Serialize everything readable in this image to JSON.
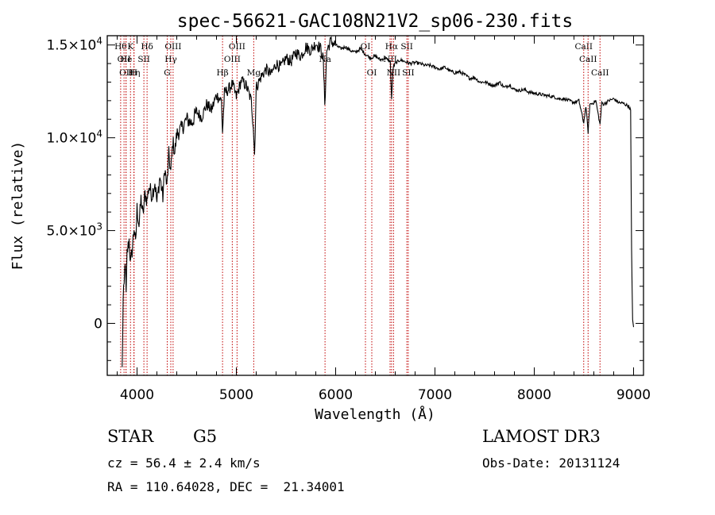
{
  "chart_data": {
    "type": "line",
    "title": "spec-56621-GAC108N21V2_sp06-230.fits",
    "xlabel": "Wavelength (Å)",
    "ylabel": "Flux (relative)",
    "xlim": [
      3700,
      9100
    ],
    "ylim": [
      -2800,
      15500
    ],
    "x_ticks": [
      4000,
      5000,
      6000,
      7000,
      8000,
      9000
    ],
    "x_tick_labels": [
      "4000",
      "5000",
      "6000",
      "7000",
      "8000",
      "9000"
    ],
    "y_ticks": [
      0,
      5000,
      10000,
      15000
    ],
    "y_tick_labels": [
      {
        "mantissa": "0",
        "exponent": ""
      },
      {
        "mantissa": "5.0×10",
        "exponent": "3"
      },
      {
        "mantissa": "1.0×10",
        "exponent": "4"
      },
      {
        "mantissa": "1.5×10",
        "exponent": "4"
      }
    ],
    "series": [
      {
        "name": "spectrum",
        "x": [
          3850,
          3860,
          3870,
          3880,
          3890,
          3900,
          3920,
          3935,
          3950,
          3970,
          3985,
          4000,
          4020,
          4040,
          4060,
          4080,
          4100,
          4120,
          4150,
          4180,
          4200,
          4230,
          4260,
          4280,
          4300,
          4320,
          4340,
          4360,
          4380,
          4400,
          4450,
          4500,
          4550,
          4600,
          4650,
          4700,
          4750,
          4800,
          4850,
          4861,
          4880,
          4920,
          4960,
          5000,
          5050,
          5100,
          5150,
          5170,
          5183,
          5200,
          5250,
          5300,
          5350,
          5400,
          5450,
          5500,
          5550,
          5600,
          5650,
          5700,
          5750,
          5800,
          5850,
          5875,
          5890,
          5896,
          5910,
          5950,
          6000,
          6050,
          6100,
          6150,
          6200,
          6250,
          6300,
          6350,
          6400,
          6450,
          6500,
          6550,
          6563,
          6580,
          6600,
          6650,
          6700,
          6750,
          6800,
          6850,
          6900,
          6950,
          7000,
          7050,
          7100,
          7150,
          7200,
          7250,
          7300,
          7350,
          7400,
          7450,
          7500,
          7550,
          7600,
          7650,
          7700,
          7750,
          7800,
          7850,
          7900,
          7950,
          8000,
          8050,
          8100,
          8150,
          8200,
          8250,
          8300,
          8350,
          8400,
          8450,
          8498,
          8520,
          8542,
          8560,
          8600,
          8620,
          8662,
          8680,
          8700,
          8750,
          8800,
          8850,
          8900,
          8950,
          8970,
          8980,
          8990,
          9000
        ],
        "y": [
          -2500,
          1200,
          2000,
          3500,
          1500,
          3800,
          4500,
          3200,
          3900,
          5200,
          4200,
          6200,
          5300,
          6700,
          5800,
          7000,
          6600,
          7400,
          6900,
          7600,
          6500,
          7900,
          6800,
          8400,
          7300,
          9100,
          8100,
          9800,
          9200,
          10200,
          10500,
          11000,
          10800,
          11400,
          11100,
          11800,
          11500,
          12300,
          12000,
          10300,
          12400,
          12600,
          12900,
          12200,
          13100,
          12800,
          12000,
          10700,
          9100,
          12700,
          13300,
          13700,
          13400,
          14000,
          13800,
          14300,
          14100,
          14600,
          14400,
          14900,
          14700,
          15100,
          14800,
          14200,
          11900,
          12500,
          14700,
          15200,
          15000,
          14800,
          14900,
          14700,
          14600,
          14800,
          14500,
          14300,
          14400,
          14200,
          14300,
          14100,
          12100,
          13800,
          14000,
          14200,
          14100,
          14000,
          14050,
          14000,
          13900,
          13900,
          13800,
          13700,
          13800,
          13600,
          13500,
          13550,
          13400,
          13200,
          13250,
          13000,
          13000,
          12900,
          12800,
          13000,
          12700,
          12850,
          12600,
          12550,
          12600,
          12450,
          12400,
          12350,
          12300,
          12250,
          12200,
          12100,
          12100,
          12000,
          11900,
          12000,
          10800,
          11700,
          10300,
          11800,
          11900,
          12000,
          10700,
          11900,
          11800,
          12000,
          12100,
          11900,
          11850,
          11700,
          11500,
          4000,
          200,
          -200
        ]
      }
    ],
    "line_markers": [
      {
        "wavelength": 3835,
        "row": 0,
        "label": "Hθ"
      },
      {
        "wavelength": 3869,
        "row": 1,
        "label": "OII"
      },
      {
        "wavelength": 3889,
        "row": 2,
        "label": "OII"
      },
      {
        "wavelength": 3934,
        "row": 0,
        "label": "K"
      },
      {
        "wavelength": 3889,
        "row": 1,
        "label": "He"
      },
      {
        "wavelength": 3970,
        "row": 2,
        "label": "Hη"
      },
      {
        "wavelength": 3968,
        "row": 2,
        "label": "H"
      },
      {
        "wavelength": 4101,
        "row": 0,
        "label": "Hδ"
      },
      {
        "wavelength": 4069,
        "row": 1,
        "label": "SII"
      },
      {
        "wavelength": 4304,
        "row": 2,
        "label": "G"
      },
      {
        "wavelength": 4340,
        "row": 1,
        "label": "Hγ"
      },
      {
        "wavelength": 4363,
        "row": 0,
        "label": "OIII"
      },
      {
        "wavelength": 4861,
        "row": 2,
        "label": "Hβ"
      },
      {
        "wavelength": 4959,
        "row": 1,
        "label": "OIII"
      },
      {
        "wavelength": 5007,
        "row": 0,
        "label": "OIII"
      },
      {
        "wavelength": 5175,
        "row": 2,
        "label": "Mg"
      },
      {
        "wavelength": 5893,
        "row": 1,
        "label": "Na"
      },
      {
        "wavelength": 6300,
        "row": 0,
        "label": "OI"
      },
      {
        "wavelength": 6364,
        "row": 2,
        "label": "OI"
      },
      {
        "wavelength": 6548,
        "row": 1,
        "label": "NII"
      },
      {
        "wavelength": 6563,
        "row": 0,
        "label": "Hα"
      },
      {
        "wavelength": 6583,
        "row": 2,
        "label": "NII"
      },
      {
        "wavelength": 6717,
        "row": 0,
        "label": "SII"
      },
      {
        "wavelength": 6731,
        "row": 2,
        "label": "SII"
      },
      {
        "wavelength": 8498,
        "row": 0,
        "label": "CaII"
      },
      {
        "wavelength": 8542,
        "row": 1,
        "label": "CaII"
      },
      {
        "wavelength": 8662,
        "row": 2,
        "label": "CaII"
      }
    ]
  },
  "info": {
    "class": "STAR",
    "subclass": "G5",
    "survey": "LAMOST DR3",
    "cz": "cz = 56.4 ± 2.4 km/s",
    "obs_date": "Obs-Date: 20131124",
    "coords": "RA = 110.64028, DEC =  21.34001"
  }
}
